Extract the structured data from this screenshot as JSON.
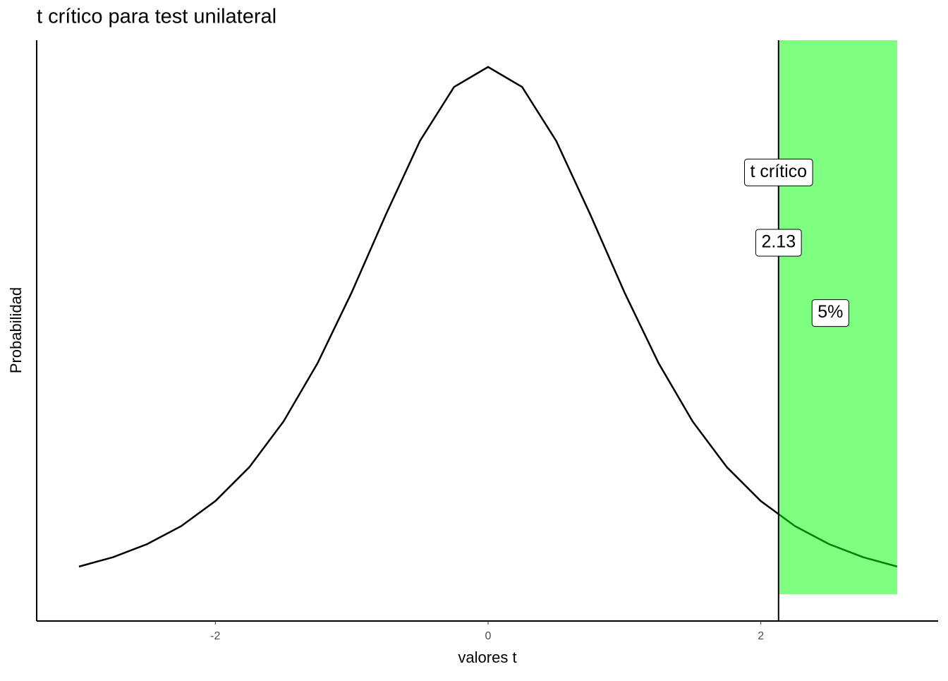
{
  "chart_data": {
    "type": "line",
    "title": "t crítico para test unilateral",
    "x_label": "valores t",
    "y_label": "Probabilidad",
    "x": [
      -3,
      -2.75,
      -2.5,
      -2.25,
      -2,
      -1.75,
      -1.5,
      -1.25,
      -1,
      -0.75,
      -0.5,
      -0.25,
      0,
      0.25,
      0.5,
      0.75,
      1,
      1.25,
      1.5,
      1.75,
      2,
      2.25,
      2.5,
      2.75,
      3
    ],
    "values": [
      0.0197,
      0.0264,
      0.0357,
      0.0485,
      0.0663,
      0.0905,
      0.1229,
      0.1644,
      0.2147,
      0.2699,
      0.3223,
      0.3607,
      0.375,
      0.3607,
      0.3223,
      0.2699,
      0.2147,
      0.1644,
      0.1229,
      0.0905,
      0.0663,
      0.0485,
      0.0357,
      0.0264,
      0.0197
    ],
    "color": "#000000",
    "critical_value": 2.13,
    "band": {
      "xmin": 2.13,
      "xmax": 3,
      "ymin": 0,
      "color": "#00ff00"
    },
    "annotations": [
      {
        "label": "t crítico",
        "x": 2.13,
        "y": 0.3
      },
      {
        "label": "2.13",
        "x": 2.13,
        "y": 0.25
      },
      {
        "label": "5%",
        "x": 2.51,
        "y": 0.2
      }
    ],
    "xlim": [
      -3.31,
      3.3
    ],
    "ylim": [
      -0.019,
      0.394
    ],
    "xticks": [
      -2,
      0,
      2
    ],
    "grid": false
  }
}
